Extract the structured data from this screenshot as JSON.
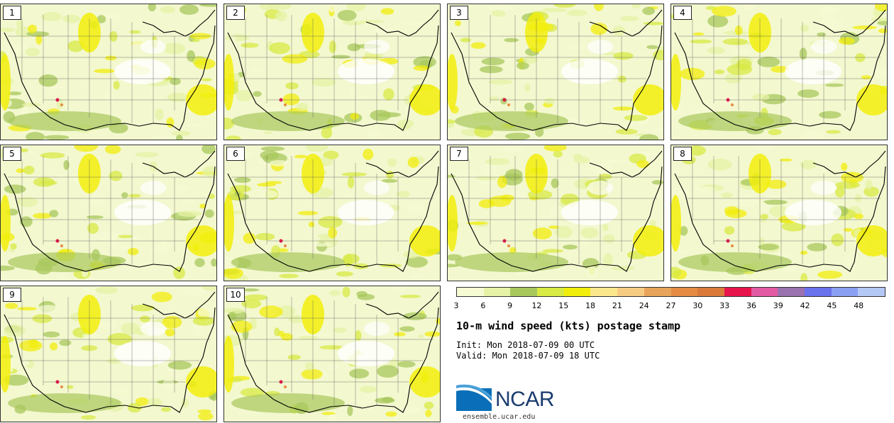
{
  "title": "10-m wind speed (kts) postage stamp",
  "init": "Init: Mon 2018-07-09 00 UTC",
  "valid": "Valid: Mon 2018-07-09 18 UTC",
  "site": "ensemble.ucar.edu",
  "logo_text": "NCAR",
  "stamps": [
    "1",
    "2",
    "3",
    "4",
    "5",
    "6",
    "7",
    "8",
    "9",
    "10"
  ],
  "colorbar": {
    "tick_labels": [
      "3",
      "6",
      "9",
      "12",
      "15",
      "18",
      "21",
      "24",
      "27",
      "30",
      "33",
      "36",
      "39",
      "42",
      "45",
      "48"
    ],
    "colors": [
      "#f6fbd3",
      "#e6f3a6",
      "#a8c85c",
      "#d8ea44",
      "#f2ee0c",
      "#fbe88c",
      "#f6cc82",
      "#e8a45a",
      "#e48c42",
      "#da7a3a",
      "#e8144c",
      "#e25aa4",
      "#9a72b0",
      "#6a72ec",
      "#8aa0f2",
      "#b4c8f6"
    ]
  }
}
